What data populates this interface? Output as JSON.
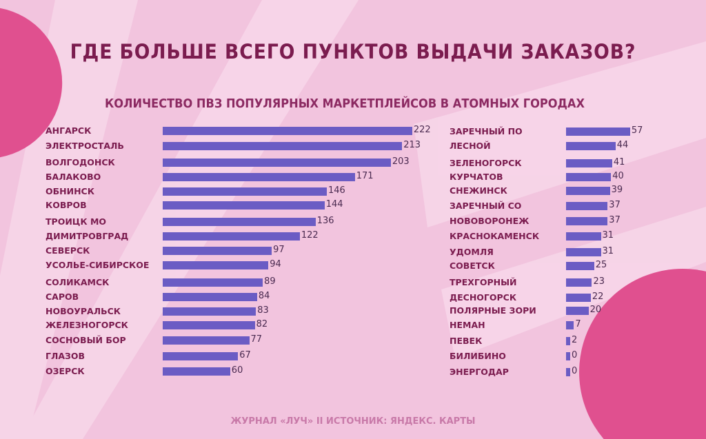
{
  "title": "ГДЕ БОЛЬШЕ ВСЕГО ПУНКТОВ ВЫДАЧИ ЗАКАЗОВ?",
  "footer": "ЖУРНАЛ «ЛУЧ» II ИСТОЧНИК: ЯНДЕКС. КАРТЫ",
  "colors": {
    "bar": "#6b5cc4",
    "accent": "#e0508f",
    "title": "#7b1c4f"
  },
  "chart_data": {
    "type": "bar",
    "title": "КОЛИЧЕСТВО ПВЗ ПОПУЛЯРНЫХ МАРКЕТПЛЕЙСОВ В АТОМНЫХ ГОРОДАХ",
    "orientation": "horizontal",
    "xlabel": "",
    "ylabel": "",
    "grid": false,
    "panels": [
      {
        "categories": [
          "АНГАРСК",
          "ЭЛЕКТРОСТАЛЬ",
          "ВОЛГОДОНСК",
          "БАЛАКОВО",
          "ОБНИНСК",
          "КОВРОВ",
          "ТРОИЦК МО",
          "ДИМИТРОВГРАД",
          "СЕВЕРСК",
          "УСОЛЬЕ-СИБИРСКОЕ",
          "СОЛИКАМСК",
          "САРОВ",
          "НОВОУРАЛЬСК",
          "ЖЕЛЕЗНОГОРСК",
          "СОСНОВЫЙ БОР",
          "ГЛАЗОВ",
          "ОЗЕРСК"
        ],
        "values": [
          222,
          213,
          203,
          171,
          146,
          144,
          136,
          122,
          97,
          94,
          89,
          84,
          83,
          82,
          77,
          67,
          60
        ]
      },
      {
        "categories": [
          "ЗАРЕЧНЫЙ ПО",
          "ЛЕСНОЙ",
          "ЗЕЛЕНОГОРСК",
          "КУРЧАТОВ",
          "СНЕЖИНСК",
          "ЗАРЕЧНЫЙ СО",
          "НОВОВОРОНЕЖ",
          "КРАСНОКАМЕНСК",
          "УДОМЛЯ",
          "СОВЕТСК",
          "ТРЕХГОРНЫЙ",
          "ДЕСНОГОРСК",
          "ПОЛЯРНЫЕ ЗОРИ",
          "НЕМАН",
          "ПЕВЕК",
          "БИЛИБИНО",
          "ЭНЕРГОДАР"
        ],
        "values": [
          57,
          44,
          41,
          40,
          39,
          37,
          37,
          31,
          31,
          25,
          23,
          22,
          20,
          7,
          2,
          0,
          0
        ]
      }
    ]
  }
}
